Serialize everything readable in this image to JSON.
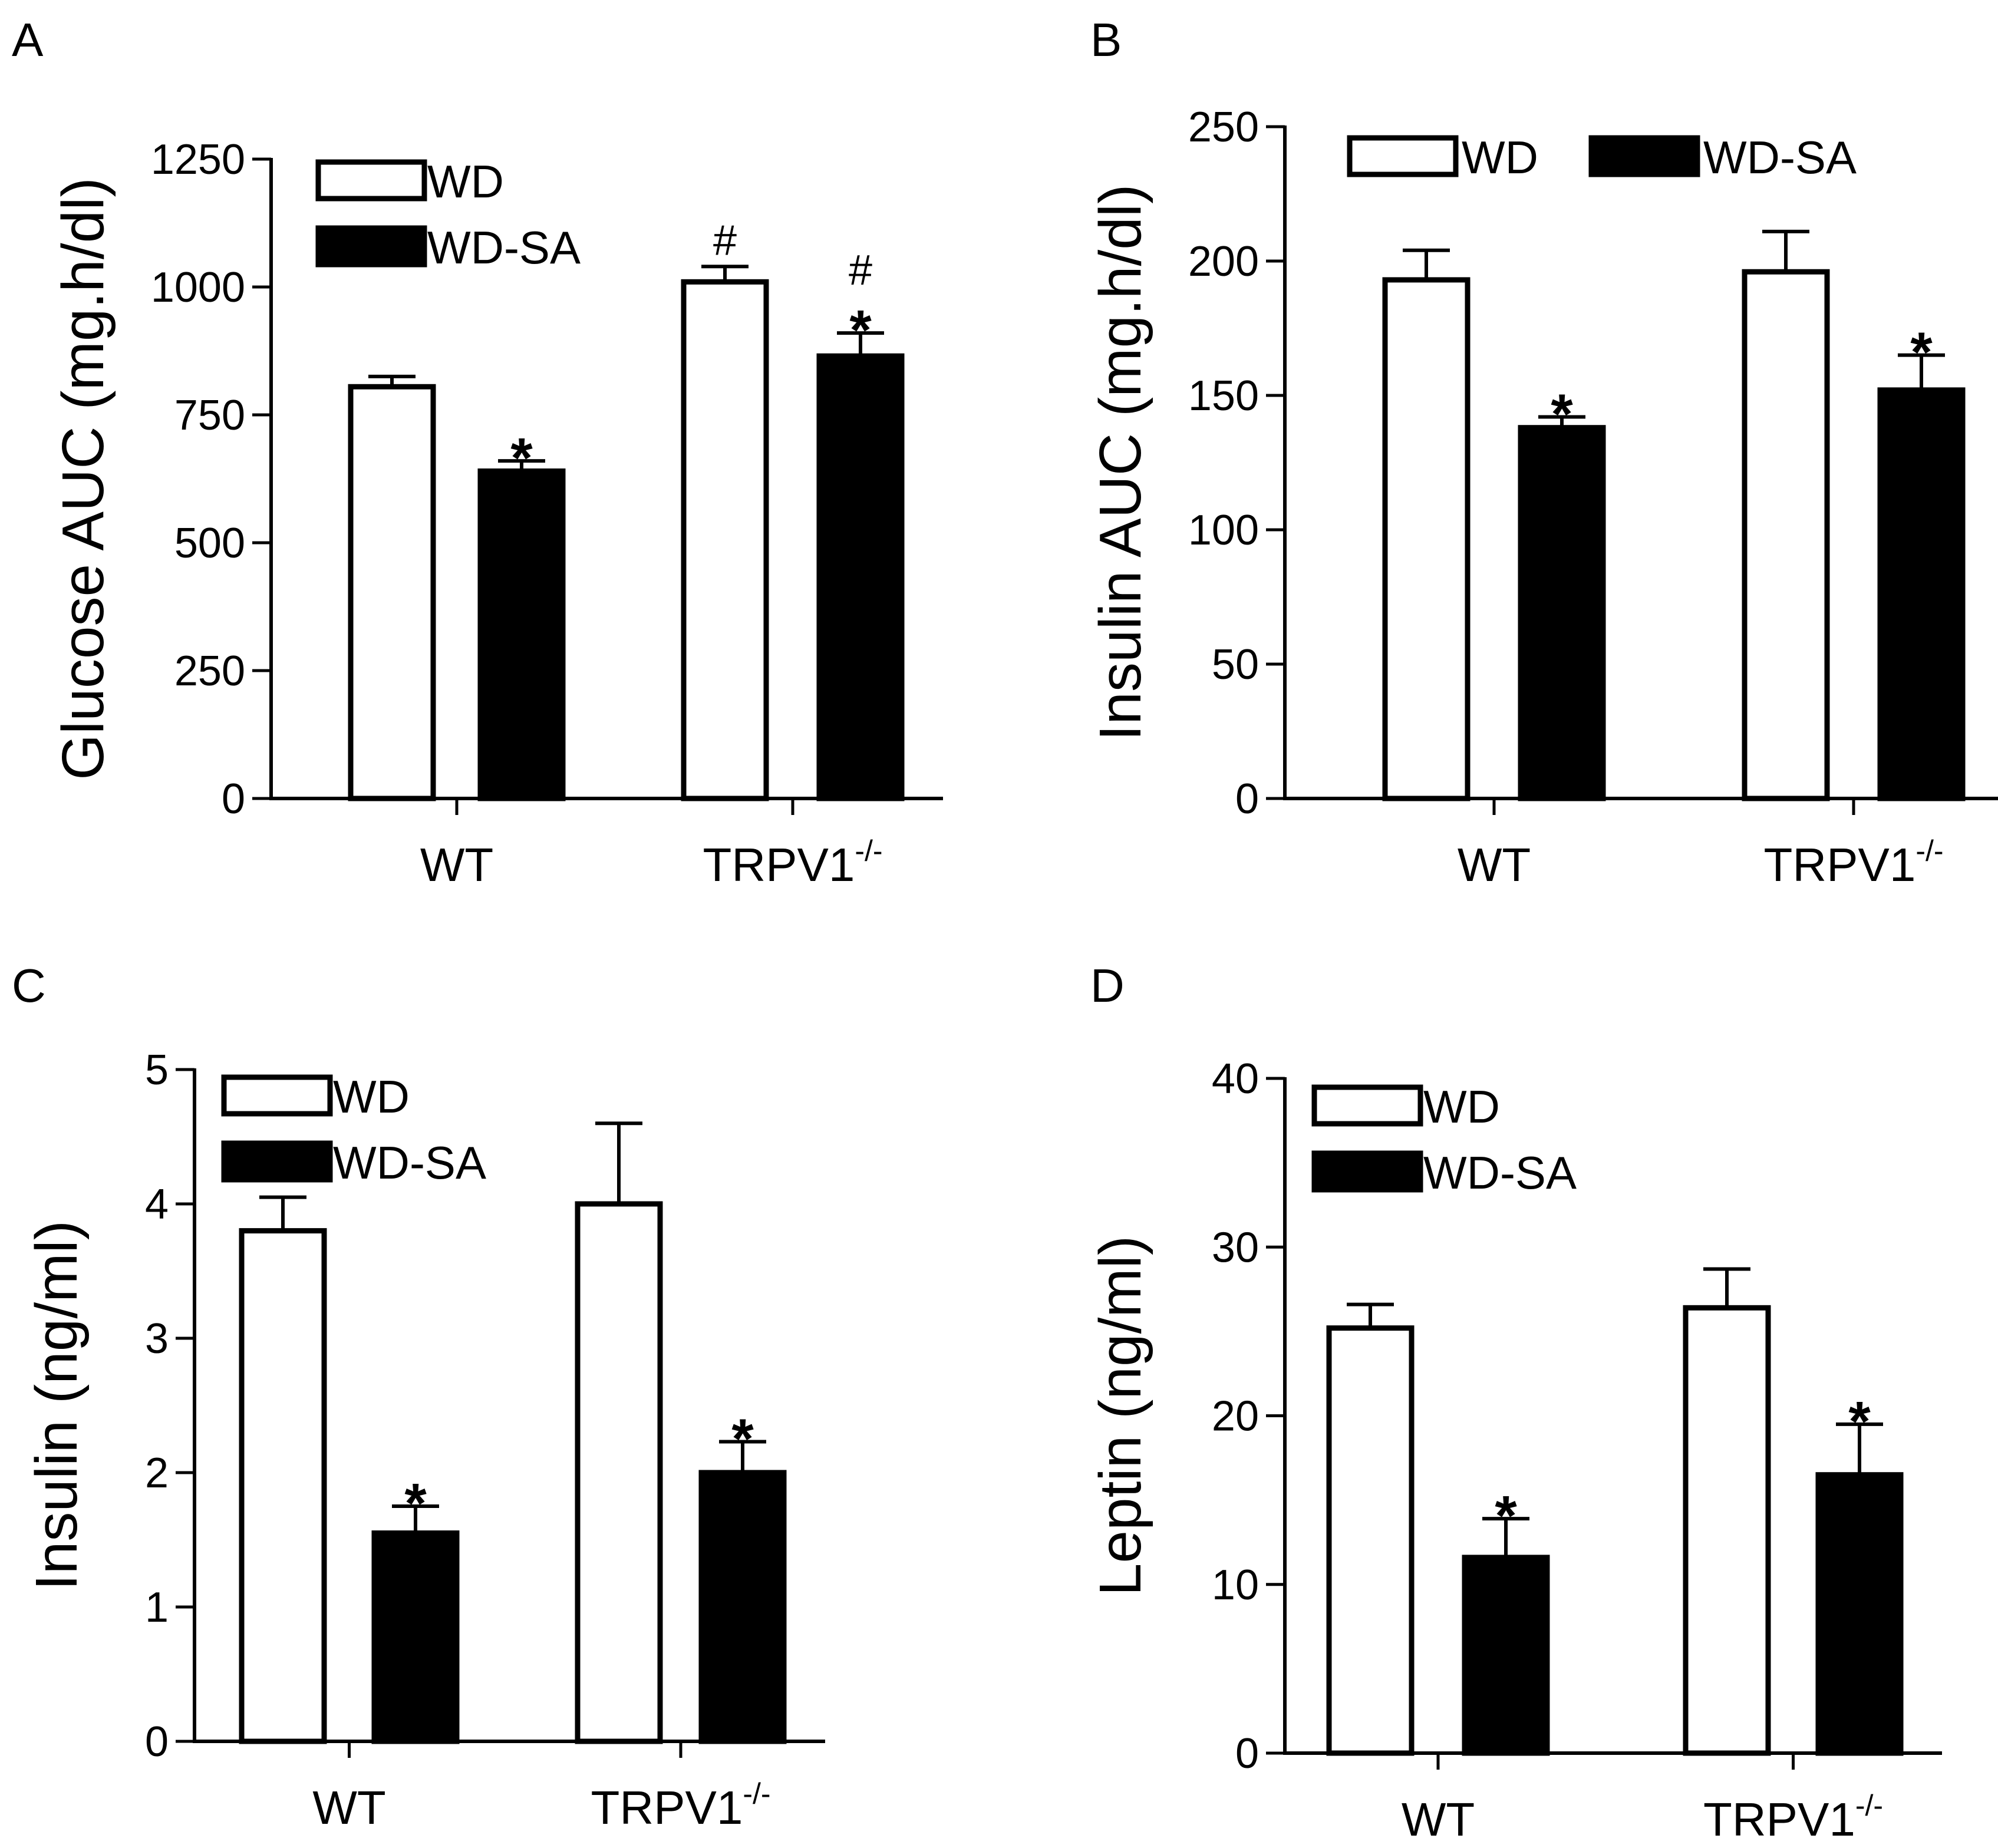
{
  "chart_data": [
    {
      "type": "bar",
      "panel": "A",
      "ylabel": "Glucose AUC (mg.h/dl)",
      "ylim": [
        0,
        1250
      ],
      "yticks": [
        0,
        250,
        500,
        750,
        1000,
        1250
      ],
      "ytick_labels": [
        "0",
        "250",
        "500",
        "750",
        "1000",
        "1250"
      ],
      "categories": [
        {
          "base": "WT",
          "sup": ""
        },
        {
          "base": "TRPV1",
          "sup": "-/-"
        }
      ],
      "legend": {
        "placement": "top-left",
        "rows": 2
      },
      "series": [
        {
          "name": "WD",
          "color": "#ffffff",
          "values": [
            805,
            1010
          ],
          "errors": [
            20,
            30
          ],
          "annotations": [
            [],
            [
              "#"
            ]
          ]
        },
        {
          "name": "WD-SA",
          "color": "#000000",
          "values": [
            640,
            865
          ],
          "errors": [
            20,
            45
          ],
          "annotations": [
            [
              "*"
            ],
            [
              "*",
              "#"
            ]
          ]
        }
      ]
    },
    {
      "type": "bar",
      "panel": "B",
      "ylabel": "Insulin AUC (mg.h/dl)",
      "ylim": [
        0,
        250
      ],
      "yticks": [
        0,
        50,
        100,
        150,
        200,
        250
      ],
      "ytick_labels": [
        "0",
        "50",
        "100",
        "150",
        "200",
        "250"
      ],
      "categories": [
        {
          "base": "WT",
          "sup": ""
        },
        {
          "base": "TRPV1",
          "sup": "-/-"
        }
      ],
      "legend": {
        "placement": "top",
        "rows": 1
      },
      "series": [
        {
          "name": "WD",
          "color": "#ffffff",
          "values": [
            193,
            196
          ],
          "errors": [
            11,
            15
          ],
          "annotations": [
            [],
            []
          ]
        },
        {
          "name": "WD-SA",
          "color": "#000000",
          "values": [
            138,
            152
          ],
          "errors": [
            4,
            13
          ],
          "annotations": [
            [
              "*"
            ],
            [
              "*"
            ]
          ]
        }
      ]
    },
    {
      "type": "bar",
      "panel": "C",
      "ylabel": "Insulin (ng/ml)",
      "ylim": [
        0,
        5
      ],
      "yticks": [
        0,
        1,
        2,
        3,
        4,
        5
      ],
      "ytick_labels": [
        "0",
        "1",
        "2",
        "3",
        "4",
        "5"
      ],
      "categories": [
        {
          "base": "WT",
          "sup": ""
        },
        {
          "base": "TRPV1",
          "sup": "-/-"
        }
      ],
      "legend": {
        "placement": "top-left",
        "rows": 2
      },
      "series": [
        {
          "name": "WD",
          "color": "#ffffff",
          "values": [
            3.8,
            4.0
          ],
          "errors": [
            0.25,
            0.6
          ],
          "annotations": [
            [],
            []
          ]
        },
        {
          "name": "WD-SA",
          "color": "#000000",
          "values": [
            1.55,
            2.0
          ],
          "errors": [
            0.2,
            0.23
          ],
          "annotations": [
            [
              "*"
            ],
            [
              "*"
            ]
          ]
        }
      ]
    },
    {
      "type": "bar",
      "panel": "D",
      "ylabel": "Leptin (ng/ml)",
      "ylim": [
        0,
        40
      ],
      "yticks": [
        0,
        10,
        20,
        30,
        40
      ],
      "ytick_labels": [
        "0",
        "10",
        "20",
        "30",
        "40"
      ],
      "categories": [
        {
          "base": "WT",
          "sup": ""
        },
        {
          "base": "TRPV1",
          "sup": "-/-"
        }
      ],
      "legend": {
        "placement": "top-left",
        "rows": 2
      },
      "series": [
        {
          "name": "WD",
          "color": "#ffffff",
          "values": [
            25.2,
            26.4
          ],
          "errors": [
            1.4,
            2.3
          ],
          "annotations": [
            [],
            []
          ]
        },
        {
          "name": "WD-SA",
          "color": "#000000",
          "values": [
            11.6,
            16.5
          ],
          "errors": [
            2.3,
            3.0
          ],
          "annotations": [
            [
              "*"
            ],
            [
              "*"
            ]
          ]
        }
      ]
    }
  ]
}
